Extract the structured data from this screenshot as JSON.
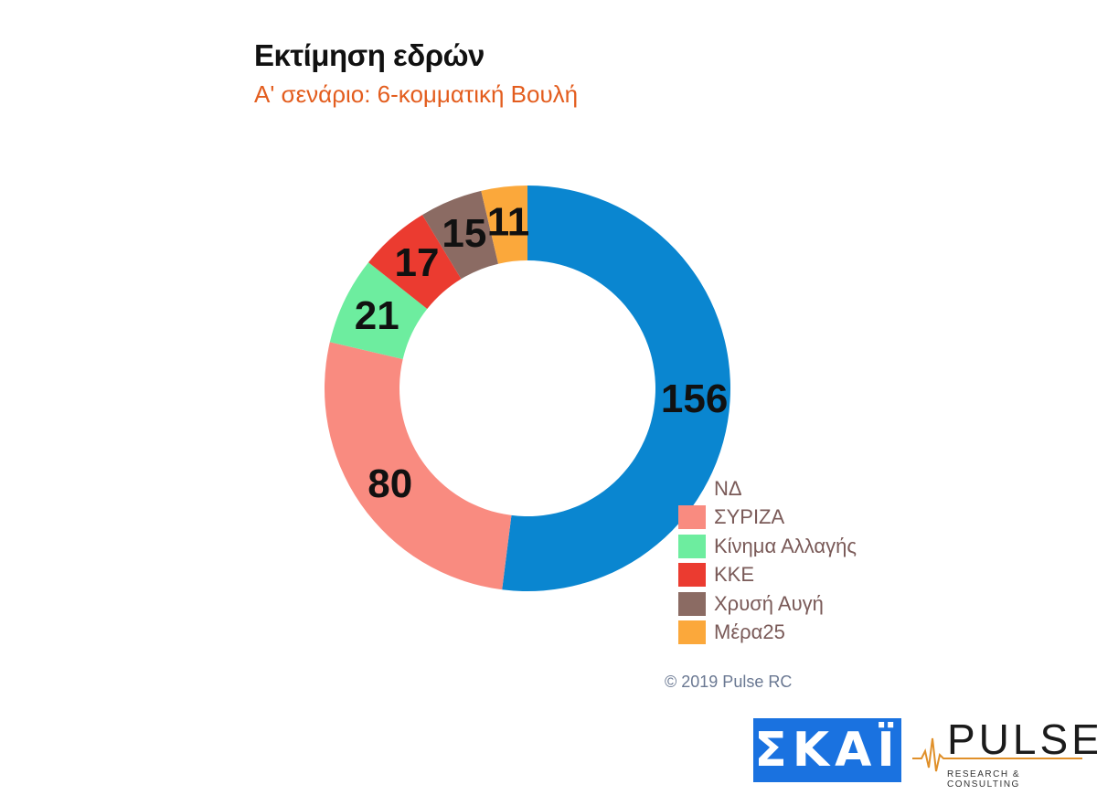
{
  "title": "Εκτίμηση εδρών",
  "subtitle": "Α' σενάριο: 6-κομματική Βουλή",
  "copyright": "© 2019 Pulse RC",
  "logos": {
    "skai": "ΣΚΑΪ",
    "pulse": "PULSE",
    "pulse_tagline": "RESEARCH & CONSULTING"
  },
  "chart_data": {
    "type": "pie",
    "donut": true,
    "categories": [
      "ΝΔ",
      "ΣΥΡΙΖΑ",
      "Κίνημα Αλλαγής",
      "ΚΚΕ",
      "Χρυσή Αυγή",
      "Μέρα25"
    ],
    "values": [
      156,
      80,
      21,
      17,
      15,
      11
    ],
    "colors": [
      "#0a86d0",
      "#f98b80",
      "#6ded9f",
      "#eb3b30",
      "#8b6b63",
      "#fba83b"
    ],
    "legend_position": "bottom-right"
  }
}
